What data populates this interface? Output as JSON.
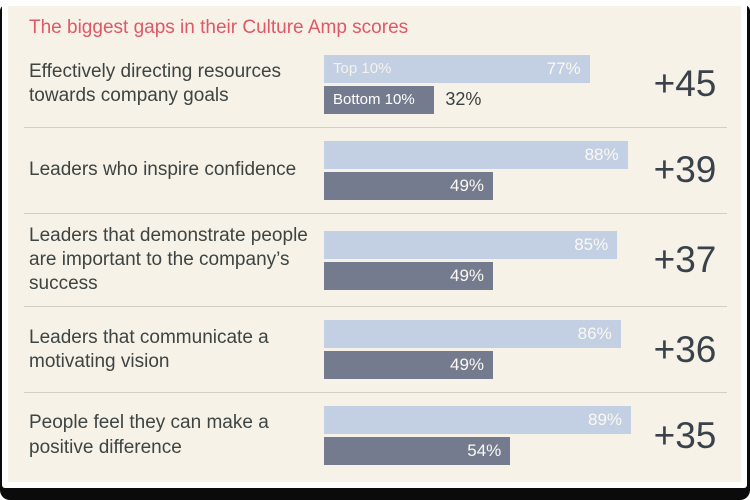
{
  "title": "The biggest gaps in their Culture Amp scores",
  "colors": {
    "accent": "#e05766",
    "background": "#f7f2e8",
    "text": "#3d4442",
    "bar_top": "#c3cfe2",
    "bar_bottom": "#757b8e"
  },
  "chart_data": {
    "type": "bar",
    "orientation": "horizontal",
    "title": "The biggest gaps in their Culture Amp scores",
    "categories": [
      "Effectively directing resources towards company goals",
      "Leaders who inspire confidence",
      "Leaders that demonstrate people are important to the company’s success",
      "Leaders that communicate a motivating vision",
      "People feel they can make a positive difference"
    ],
    "series": [
      {
        "name": "Top 10%",
        "values": [
          77,
          88,
          85,
          86,
          89
        ]
      },
      {
        "name": "Bottom 10%",
        "values": [
          32,
          49,
          49,
          49,
          54
        ]
      }
    ],
    "gap_labels": [
      "+45",
      "+39",
      "+37",
      "+36",
      "+35"
    ],
    "value_suffix": "%",
    "xlim": [
      0,
      100
    ],
    "grid": false,
    "legend_position": "inside-first-row-bars"
  }
}
